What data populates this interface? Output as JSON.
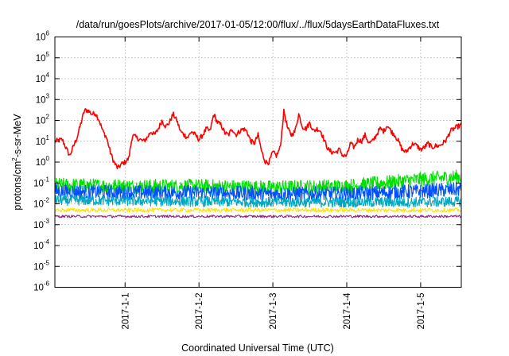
{
  "chart_data": {
    "type": "line",
    "title": "/data/run/goesPlots/archive/2017-01-05/12:00/flux/../flux/5daysEarthDataFluxes.txt",
    "xlabel": "Coordinated Universal Time (UTC)",
    "ylabel": "protons/cm2-s-sr-MeV",
    "ylabel_parts": {
      "pre": "protons/cm",
      "sup": "2",
      "post": "-s-sr-MeV"
    },
    "yscale": "log",
    "ylim": [
      1e-06,
      1000000.0
    ],
    "xlim_days": [
      -0.95,
      4.55
    ],
    "y_ticks": [
      {
        "base": "10",
        "exp": "6",
        "value": 6
      },
      {
        "base": "10",
        "exp": "5",
        "value": 5
      },
      {
        "base": "10",
        "exp": "4",
        "value": 4
      },
      {
        "base": "10",
        "exp": "3",
        "value": 3
      },
      {
        "base": "10",
        "exp": "2",
        "value": 2
      },
      {
        "base": "10",
        "exp": "1",
        "value": 1
      },
      {
        "base": "10",
        "exp": "0",
        "value": 0
      },
      {
        "base": "10",
        "exp": "-1",
        "value": -1
      },
      {
        "base": "10",
        "exp": "-2",
        "value": -2
      },
      {
        "base": "10",
        "exp": "-3",
        "value": -3
      },
      {
        "base": "10",
        "exp": "-4",
        "value": -4
      },
      {
        "base": "10",
        "exp": "-5",
        "value": -5
      },
      {
        "base": "10",
        "exp": "-6",
        "value": -6
      }
    ],
    "x_ticks": [
      {
        "label": "2017-1-1",
        "day": 0
      },
      {
        "label": "2017-1-2",
        "day": 1
      },
      {
        "label": "2017-1-3",
        "day": 2
      },
      {
        "label": "2017-1-4",
        "day": 3
      },
      {
        "label": "2017-1-5",
        "day": 4
      }
    ],
    "grid": true,
    "legend": "none",
    "series": [
      {
        "color": "#ff0000",
        "noise": 0.12,
        "x": [
          -0.95,
          -0.85,
          -0.75,
          -0.65,
          -0.55,
          -0.5,
          -0.45,
          -0.4,
          -0.35,
          -0.3,
          -0.25,
          -0.2,
          -0.15,
          -0.1,
          -0.05,
          0,
          0.05,
          0.1,
          0.15,
          0.2,
          0.25,
          0.3,
          0.35,
          0.4,
          0.45,
          0.5,
          0.55,
          0.6,
          0.65,
          0.7,
          0.75,
          0.8,
          0.85,
          0.9,
          0.95,
          1,
          1.05,
          1.1,
          1.15,
          1.2,
          1.25,
          1.3,
          1.35,
          1.4,
          1.45,
          1.5,
          1.55,
          1.6,
          1.65,
          1.7,
          1.75,
          1.8,
          1.85,
          1.9,
          1.95,
          2,
          2.05,
          2.1,
          2.15,
          2.2,
          2.25,
          2.3,
          2.35,
          2.4,
          2.45,
          2.5,
          2.55,
          2.6,
          2.65,
          2.7,
          2.75,
          2.8,
          2.85,
          2.9,
          2.95,
          3,
          3.05,
          3.1,
          3.15,
          3.2,
          3.25,
          3.3,
          3.35,
          3.4,
          3.45,
          3.5,
          3.55,
          3.6,
          3.65,
          3.7,
          3.75,
          3.8,
          3.85,
          3.9,
          3.95,
          4,
          4.05,
          4.1,
          4.15,
          4.2,
          4.25,
          4.3,
          4.35,
          4.4,
          4.45,
          4.5,
          4.55
        ],
        "y": [
          10,
          12,
          2,
          15,
          300,
          300,
          200,
          220,
          100,
          30,
          15,
          3,
          1,
          0.5,
          0.8,
          1,
          1.5,
          20,
          15,
          12,
          10,
          15,
          30,
          20,
          40,
          100,
          50,
          80,
          200,
          100,
          30,
          20,
          15,
          30,
          20,
          12,
          20,
          40,
          30,
          200,
          80,
          60,
          25,
          20,
          40,
          20,
          30,
          40,
          30,
          10,
          8,
          20,
          3,
          1,
          1,
          3,
          2,
          5,
          300,
          40,
          20,
          30,
          200,
          50,
          40,
          80,
          30,
          40,
          30,
          10,
          4,
          3,
          3,
          4,
          2,
          2,
          8,
          5,
          12,
          10,
          20,
          8,
          10,
          20,
          40,
          30,
          60,
          30,
          20,
          10,
          4,
          3,
          5,
          8,
          6,
          4,
          5,
          8,
          5,
          6,
          6,
          8,
          12,
          30,
          40,
          50,
          60
        ]
      },
      {
        "color": "#00e000",
        "noise": 0.35,
        "x": [
          -0.95,
          0,
          1,
          2,
          3,
          3.5,
          4,
          4.55
        ],
        "y": [
          0.08,
          0.07,
          0.07,
          0.06,
          0.07,
          0.1,
          0.15,
          0.2
        ]
      },
      {
        "color": "#0050ff",
        "noise": 0.35,
        "x": [
          -0.95,
          0,
          1,
          2,
          3,
          4,
          4.55
        ],
        "y": [
          0.04,
          0.035,
          0.035,
          0.03,
          0.03,
          0.04,
          0.05
        ]
      },
      {
        "color": "#00a8c0",
        "noise": 0.25,
        "x": [
          -0.95,
          0,
          1,
          2,
          3,
          4,
          4.55
        ],
        "y": [
          0.015,
          0.014,
          0.013,
          0.012,
          0.012,
          0.012,
          0.013
        ]
      },
      {
        "color": "#ffe000",
        "noise": 0.1,
        "x": [
          -0.95,
          0,
          1,
          2,
          3,
          4,
          4.55
        ],
        "y": [
          0.005,
          0.005,
          0.005,
          0.005,
          0.005,
          0.005,
          0.005
        ]
      },
      {
        "color": "#902080",
        "noise": 0.06,
        "x": [
          -0.95,
          0,
          1,
          2,
          3,
          4,
          4.55
        ],
        "y": [
          0.0025,
          0.0025,
          0.0025,
          0.0025,
          0.0025,
          0.0025,
          0.0025
        ]
      }
    ]
  }
}
